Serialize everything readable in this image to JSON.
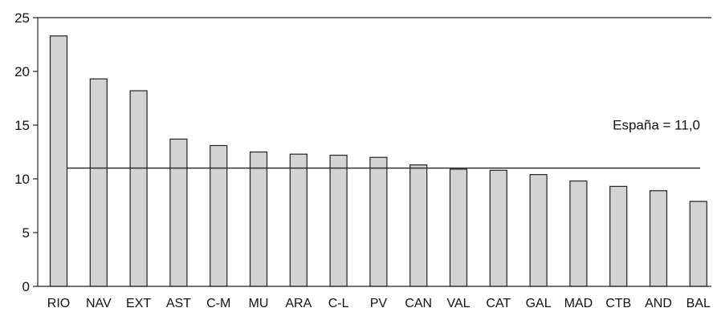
{
  "chart_data": {
    "type": "bar",
    "categories": [
      "RIO",
      "NAV",
      "EXT",
      "AST",
      "C-M",
      "MU",
      "ARA",
      "C-L",
      "PV",
      "CAN",
      "VAL",
      "CAT",
      "GAL",
      "MAD",
      "CTB",
      "AND",
      "BAL"
    ],
    "values": [
      23.3,
      19.3,
      18.2,
      13.7,
      13.1,
      12.5,
      12.3,
      12.2,
      12.0,
      11.3,
      10.9,
      10.8,
      10.4,
      9.8,
      9.3,
      8.9,
      7.9
    ],
    "ylim": [
      0,
      25
    ],
    "yticks": [
      0,
      5,
      10,
      15,
      20,
      25
    ],
    "reference_line": {
      "value": 11.0,
      "label": "España = 11,0"
    },
    "title": "",
    "xlabel": "",
    "ylabel": "",
    "grid": false,
    "legend": "none",
    "colors": {
      "bar_fill": "#d3d3d3",
      "bar_stroke": "#222222",
      "line": "#222222"
    }
  }
}
